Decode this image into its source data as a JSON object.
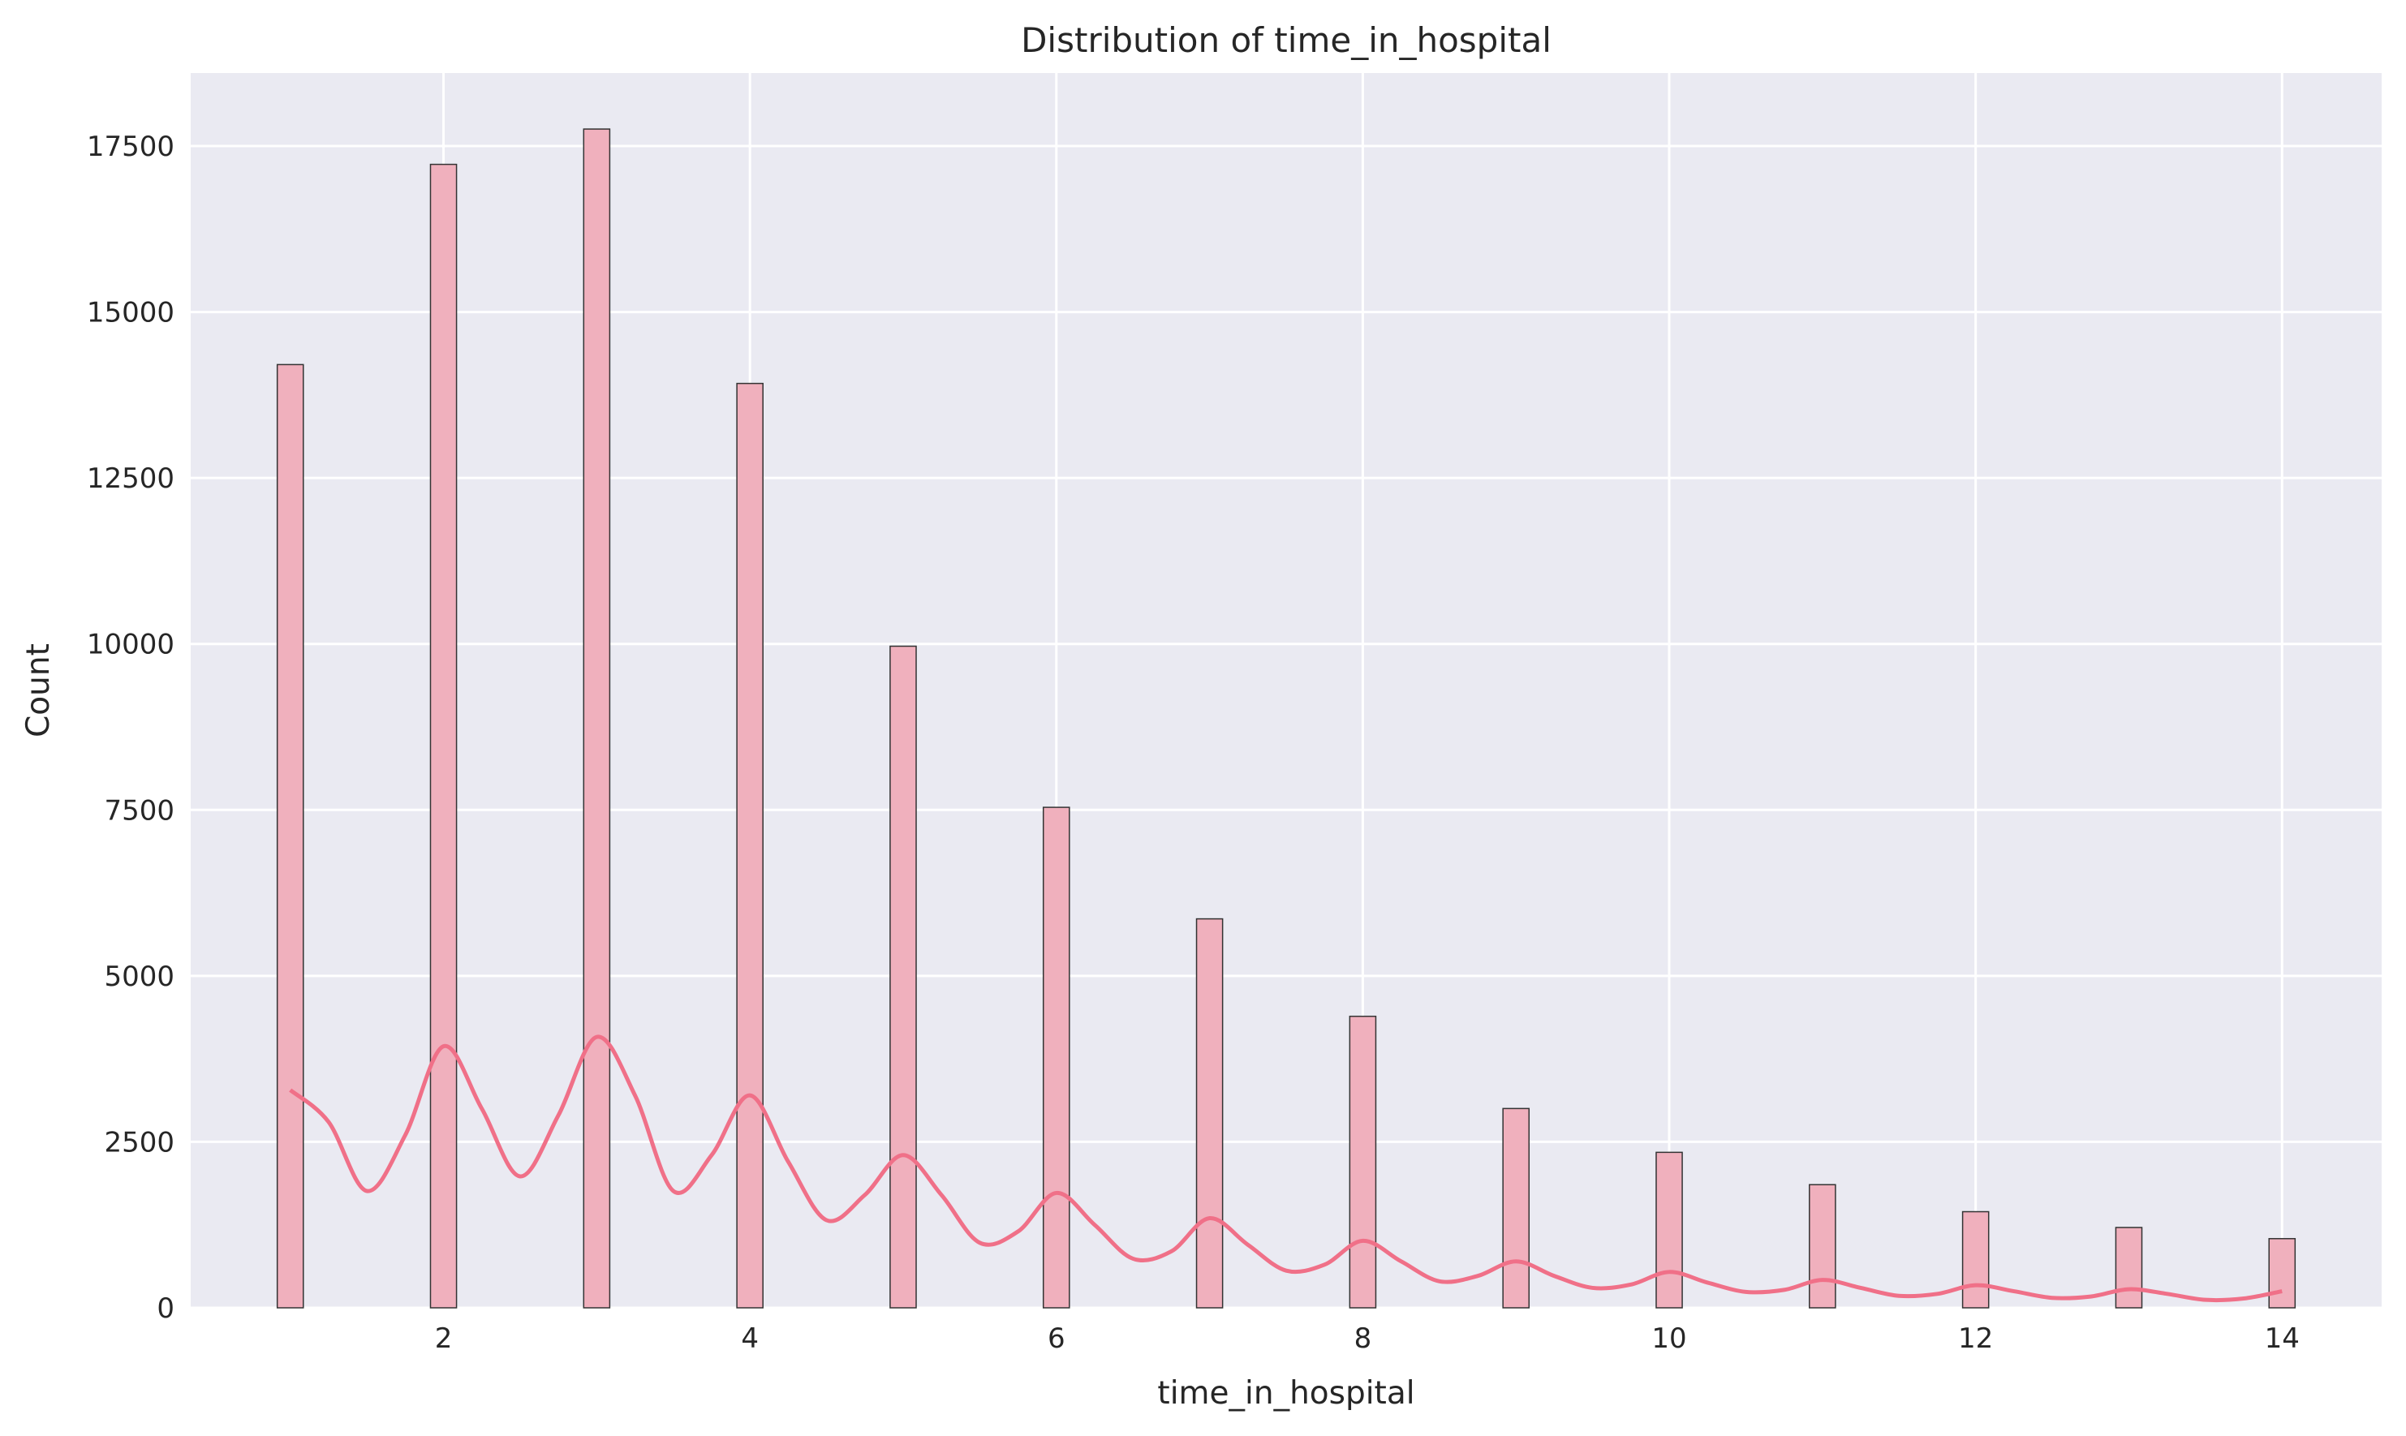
{
  "chart_data": {
    "type": "bar",
    "title": "Distribution of time_in_hospital",
    "xlabel": "time_in_hospital",
    "ylabel": "Count",
    "x": [
      1,
      2,
      3,
      4,
      5,
      6,
      7,
      8,
      9,
      10,
      11,
      12,
      13,
      14
    ],
    "values": [
      14208,
      17224,
      17756,
      13924,
      9966,
      7539,
      5859,
      4391,
      3002,
      2342,
      1855,
      1448,
      1210,
      1042
    ],
    "xlim": [
      0.35,
      14.65
    ],
    "ylim": [
      0,
      18600
    ],
    "xticks": [
      2,
      4,
      6,
      8,
      10,
      12,
      14
    ],
    "yticks": [
      0,
      2500,
      5000,
      7500,
      10000,
      12500,
      15000,
      17500
    ],
    "grid": true,
    "colors": {
      "background": "#eaeaf2",
      "grid": "#ffffff",
      "bar_fill": "#f0b0bd",
      "bar_edge": "#333333",
      "kde_line": "#f07088"
    },
    "kde": {
      "x": [
        1,
        1.25,
        1.5,
        1.75,
        2,
        2.25,
        2.5,
        2.75,
        3,
        3.25,
        3.5,
        3.75,
        4,
        4.25,
        4.5,
        4.75,
        5,
        5.25,
        5.5,
        5.75,
        6,
        6.25,
        6.5,
        6.75,
        7,
        7.25,
        7.5,
        7.75,
        8,
        8.25,
        8.5,
        8.75,
        9,
        9.25,
        9.5,
        9.75,
        10,
        10.25,
        10.5,
        10.75,
        11,
        11.25,
        11.5,
        11.75,
        12,
        12.25,
        12.5,
        12.75,
        13,
        13.25,
        13.5,
        13.75,
        14
      ],
      "y": [
        3280,
        2800,
        1760,
        2600,
        3940,
        3000,
        1980,
        2900,
        4080,
        3200,
        1760,
        2300,
        3200,
        2200,
        1320,
        1700,
        2300,
        1700,
        980,
        1150,
        1730,
        1250,
        740,
        850,
        1350,
        950,
        560,
        650,
        1010,
        700,
        400,
        480,
        700,
        480,
        300,
        350,
        540,
        380,
        240,
        270,
        420,
        300,
        180,
        210,
        340,
        250,
        150,
        170,
        280,
        210,
        120,
        140,
        250
      ]
    }
  }
}
